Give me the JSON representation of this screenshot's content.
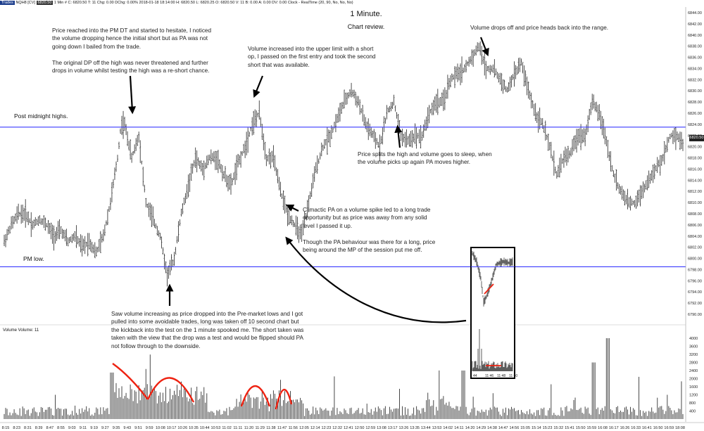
{
  "header": {
    "instrument": "NQH8 [CV]",
    "chips": [
      "Trades",
      "6820.50"
    ],
    "info": "1 Min  #  C: 6820.50  T: 11  Chg: 0.00  DChg: 0.00%  2018-01-18 18:14:00  H: 6820.50  L: 6820.25  O: 6820.50  V: 11  B: 0.00  A: 0.00  DV: 0.00  Clock - RealTime  (20, 90, No, No, No)"
  },
  "titles": {
    "main": "1 Minute.",
    "sub": "Chart review."
  },
  "annotations": [
    {
      "id": "a1",
      "lines": [
        "Price reached into the PM DT and started to hesitate, I noticed",
        "the volume dropping hence the initial short but as PA was not",
        "going down I bailed from the trade.",
        "",
        "The original DP off the high was never threatened and further",
        "drops in volume whilst testing the high was a re-short chance."
      ]
    },
    {
      "id": "a2",
      "lines": [
        "Volume increased into the upper limit with a short",
        "op, I passed on the first entry and took the second",
        "short that was available."
      ]
    },
    {
      "id": "a3",
      "lines": [
        "Volume drops off and price heads back into the range."
      ]
    },
    {
      "id": "a4",
      "lines": [
        "Price splits the high and volume goes to sleep, when",
        "the volume picks up again PA moves higher."
      ]
    },
    {
      "id": "a5",
      "lines": [
        "Climactic PA on a volume spike led to a long trade",
        "opportunity but as price was away from any solid",
        "level I passed it up.",
        "",
        "Though the PA behaviour was there for a long, price",
        "being around the MP of the session put me off."
      ]
    },
    {
      "id": "a6",
      "lines": [
        "Saw volume increasing as price dropped into the Pre-market lows and I got",
        "pulled into some avoidable trades, long was taken off 10 second chart but",
        "the kickback into the test on the 1 minute spooked me.  The short taken was",
        "taken with the view that the drop was a test and would be flipped should PA",
        "not follow through to the downside."
      ]
    }
  ],
  "levels": [
    {
      "label": "Post midnight highs.",
      "price": 6823.5,
      "color": "#3a3aff"
    },
    {
      "label": "PM low.",
      "price": 6798.5,
      "color": "#3a3aff"
    }
  ],
  "volume_panel": {
    "title": "Volume  Volume: 11"
  },
  "last_price": "6820.50",
  "inset": {
    "x_labels": [
      "44",
      "11:46",
      "11:48",
      "11:50"
    ]
  },
  "chart_data": {
    "type": "ohlc",
    "title": "1 Minute.",
    "subtitle": "Chart review.",
    "ylim": [
      6790,
      6845
    ],
    "y_ticks": [
      "6844.00",
      "6842.00",
      "6840.00",
      "6838.00",
      "6836.00",
      "6834.00",
      "6832.00",
      "6830.00",
      "6828.00",
      "6826.00",
      "6824.00",
      "6822.00",
      "6820.00",
      "6818.00",
      "6816.00",
      "6814.00",
      "6812.00",
      "6810.00",
      "6808.00",
      "6806.00",
      "6804.00",
      "6802.00",
      "6800.00",
      "6798.00",
      "6796.00",
      "6794.00",
      "6792.00",
      "6790.00"
    ],
    "volume_ticks": [
      "4000",
      "3600",
      "3200",
      "2800",
      "2400",
      "2000",
      "1600",
      "1200",
      "800",
      "400"
    ],
    "x_ticks": [
      "8:15",
      "8:23",
      "8:31",
      "8:39",
      "8:47",
      "8:55",
      "9:03",
      "9:11",
      "9:19",
      "9:27",
      "9:35",
      "9:43",
      "9:51",
      "9:59",
      "10:08",
      "10:17",
      "10:26",
      "10:35",
      "10:44",
      "10:53",
      "11:02",
      "11:11",
      "11:20",
      "11:29",
      "11:38",
      "11:47",
      "11:56",
      "12:05",
      "12:14",
      "12:23",
      "12:32",
      "12:41",
      "12:50",
      "12:59",
      "13:08",
      "13:17",
      "13:26",
      "13:35",
      "13:44",
      "13:53",
      "14:02",
      "14:11",
      "14:20",
      "14:29",
      "14:38",
      "14:47",
      "14:56",
      "15:05",
      "15:14",
      "15:23",
      "15:32",
      "15:41",
      "15:50",
      "15:59",
      "16:08",
      "16:17",
      "16:26",
      "16:33",
      "16:41",
      "16:50",
      "16:59",
      "18:08"
    ],
    "price_path": [
      [
        0,
        6803
      ],
      [
        2,
        6806
      ],
      [
        4,
        6808
      ],
      [
        6,
        6808
      ],
      [
        8,
        6806
      ],
      [
        10,
        6807
      ],
      [
        12,
        6806
      ],
      [
        14,
        6804
      ],
      [
        16,
        6805
      ],
      [
        18,
        6803
      ],
      [
        20,
        6804
      ],
      [
        22,
        6802
      ],
      [
        24,
        6803
      ],
      [
        26,
        6801
      ],
      [
        28,
        6804
      ],
      [
        30,
        6810
      ],
      [
        32,
        6818
      ],
      [
        33,
        6824
      ],
      [
        34,
        6824
      ],
      [
        36,
        6818
      ],
      [
        38,
        6822
      ],
      [
        40,
        6810
      ],
      [
        42,
        6807
      ],
      [
        44,
        6804
      ],
      [
        46,
        6797
      ],
      [
        48,
        6800
      ],
      [
        50,
        6808
      ],
      [
        52,
        6813
      ],
      [
        54,
        6818
      ],
      [
        56,
        6816
      ],
      [
        58,
        6818
      ],
      [
        60,
        6818
      ],
      [
        62,
        6815
      ],
      [
        64,
        6813
      ],
      [
        66,
        6817
      ],
      [
        68,
        6820
      ],
      [
        70,
        6824
      ],
      [
        72,
        6826
      ],
      [
        74,
        6818
      ],
      [
        76,
        6818
      ],
      [
        78,
        6812
      ],
      [
        80,
        6808
      ],
      [
        82,
        6806
      ],
      [
        84,
        6804
      ],
      [
        86,
        6810
      ],
      [
        88,
        6816
      ],
      [
        90,
        6820
      ],
      [
        92,
        6822
      ],
      [
        94,
        6825
      ],
      [
        96,
        6828
      ],
      [
        98,
        6830
      ],
      [
        100,
        6828
      ],
      [
        102,
        6824
      ],
      [
        104,
        6822
      ],
      [
        106,
        6820
      ],
      [
        108,
        6826
      ],
      [
        110,
        6828
      ],
      [
        112,
        6822
      ],
      [
        114,
        6821
      ],
      [
        116,
        6822
      ],
      [
        118,
        6822
      ],
      [
        120,
        6826
      ],
      [
        122,
        6828
      ],
      [
        124,
        6828
      ],
      [
        126,
        6832
      ],
      [
        128,
        6833
      ],
      [
        130,
        6834
      ],
      [
        132,
        6836
      ],
      [
        134,
        6838
      ],
      [
        136,
        6834
      ],
      [
        138,
        6834
      ],
      [
        140,
        6832
      ],
      [
        142,
        6830
      ],
      [
        144,
        6833
      ],
      [
        146,
        6835
      ],
      [
        148,
        6830
      ],
      [
        150,
        6826
      ],
      [
        152,
        6824
      ],
      [
        154,
        6820
      ],
      [
        156,
        6815
      ],
      [
        158,
        6818
      ],
      [
        160,
        6819
      ],
      [
        162,
        6822
      ],
      [
        164,
        6822
      ],
      [
        166,
        6828
      ],
      [
        168,
        6826
      ],
      [
        170,
        6821
      ],
      [
        172,
        6815
      ],
      [
        174,
        6812
      ],
      [
        176,
        6810
      ],
      [
        178,
        6810
      ],
      [
        180,
        6812
      ],
      [
        182,
        6814
      ],
      [
        184,
        6816
      ],
      [
        186,
        6818
      ],
      [
        188,
        6822
      ],
      [
        190,
        6822
      ],
      [
        192,
        6820
      ]
    ],
    "levels": [
      6823.5,
      6798.5
    ]
  }
}
